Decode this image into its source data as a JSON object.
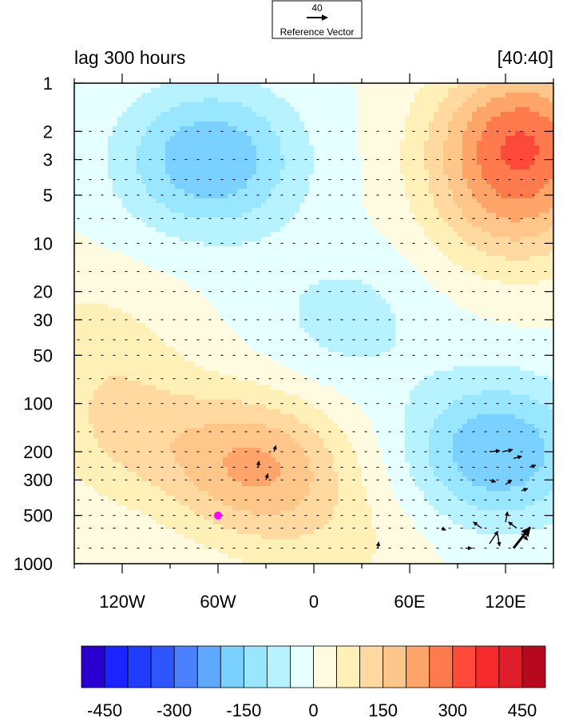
{
  "chart_data": {
    "type": "heatmap",
    "title_left": "lag 300 hours",
    "title_right": "[40:40]",
    "reference_vector": {
      "magnitude_label": "40",
      "label": "Reference Vector"
    },
    "x_axis": {
      "range": [
        -150,
        150
      ],
      "ticks": [
        {
          "value": -120,
          "label": "120W"
        },
        {
          "value": -60,
          "label": "60W"
        },
        {
          "value": 0,
          "label": "0"
        },
        {
          "value": 60,
          "label": "60E"
        },
        {
          "value": 120,
          "label": "120E"
        }
      ]
    },
    "y_axis": {
      "scale": "log",
      "direction": "inverted",
      "range": [
        1,
        1000
      ],
      "ticks": [
        1,
        2,
        3,
        5,
        10,
        20,
        30,
        50,
        100,
        200,
        300,
        500,
        1000
      ]
    },
    "colorbar": {
      "levels": [
        -500,
        -450,
        -400,
        -350,
        -300,
        -250,
        -200,
        -150,
        -100,
        -50,
        0,
        50,
        100,
        150,
        200,
        250,
        300,
        350,
        400,
        450,
        500
      ],
      "colors": [
        "#2a00d0",
        "#1a24ff",
        "#1f3cff",
        "#2e55ff",
        "#4b80ff",
        "#5fa8ff",
        "#7ad0ff",
        "#98e6ff",
        "#b6f2ff",
        "#e6ffff",
        "#fffbe0",
        "#fff0b8",
        "#ffd9a0",
        "#ffc68a",
        "#ffa56a",
        "#ff7a4c",
        "#ff4a3a",
        "#f52a2a",
        "#e01e2a",
        "#b8081e"
      ],
      "tick_labels": [
        "-450",
        "-300",
        "-150",
        "0",
        "150",
        "300",
        "450"
      ]
    },
    "marker": {
      "lon": -60,
      "pressure": 500,
      "color": "#ff00ff"
    },
    "anomaly_centers": [
      {
        "lon": -65,
        "pressure": 3,
        "value": -200
      },
      {
        "lon": 130,
        "pressure": 2,
        "value": 250
      },
      {
        "lon": 125,
        "pressure": 6,
        "value": 150
      },
      {
        "lon": -35,
        "pressure": 250,
        "value": 200
      },
      {
        "lon": -115,
        "pressure": 150,
        "value": 100
      },
      {
        "lon": 115,
        "pressure": 200,
        "value": -200
      },
      {
        "lon": 20,
        "pressure": 30,
        "value": -70
      },
      {
        "lon": -140,
        "pressure": 40,
        "value": 60
      },
      {
        "lon": 20,
        "pressure": 800,
        "value": 50
      }
    ],
    "vectors": [
      {
        "lon": 105,
        "pressure": 600,
        "u": -4,
        "v": 3
      },
      {
        "lon": 110,
        "pressure": 750,
        "u": 4,
        "v": 6
      },
      {
        "lon": 115,
        "pressure": 650,
        "u": 1,
        "v": -6
      },
      {
        "lon": 120,
        "pressure": 550,
        "u": 1,
        "v": 5
      },
      {
        "lon": 125,
        "pressure": 800,
        "u": 8,
        "v": 10
      },
      {
        "lon": 127,
        "pressure": 600,
        "u": -4,
        "v": 3
      },
      {
        "lon": 130,
        "pressure": 650,
        "u": 3,
        "v": -3
      },
      {
        "lon": 110,
        "pressure": 200,
        "u": 5,
        "v": 0.5
      },
      {
        "lon": 118,
        "pressure": 200,
        "u": 5,
        "v": 1
      },
      {
        "lon": 125,
        "pressure": 220,
        "u": 4,
        "v": 1
      },
      {
        "lon": 135,
        "pressure": 250,
        "u": 3,
        "v": 1
      },
      {
        "lon": 110,
        "pressure": 300,
        "u": 3,
        "v": -1
      },
      {
        "lon": 120,
        "pressure": 320,
        "u": 3,
        "v": 2
      },
      {
        "lon": 130,
        "pressure": 350,
        "u": 3,
        "v": 1
      },
      {
        "lon": -30,
        "pressure": 300,
        "u": 1,
        "v": 3
      },
      {
        "lon": -25,
        "pressure": 200,
        "u": 1,
        "v": 3
      },
      {
        "lon": -35,
        "pressure": 250,
        "u": 0.5,
        "v": 3
      },
      {
        "lon": 40,
        "pressure": 800,
        "u": 0.5,
        "v": 3
      },
      {
        "lon": 80,
        "pressure": 600,
        "u": 2,
        "v": -1
      },
      {
        "lon": 95,
        "pressure": 800,
        "u": 3,
        "v": 0
      }
    ]
  }
}
